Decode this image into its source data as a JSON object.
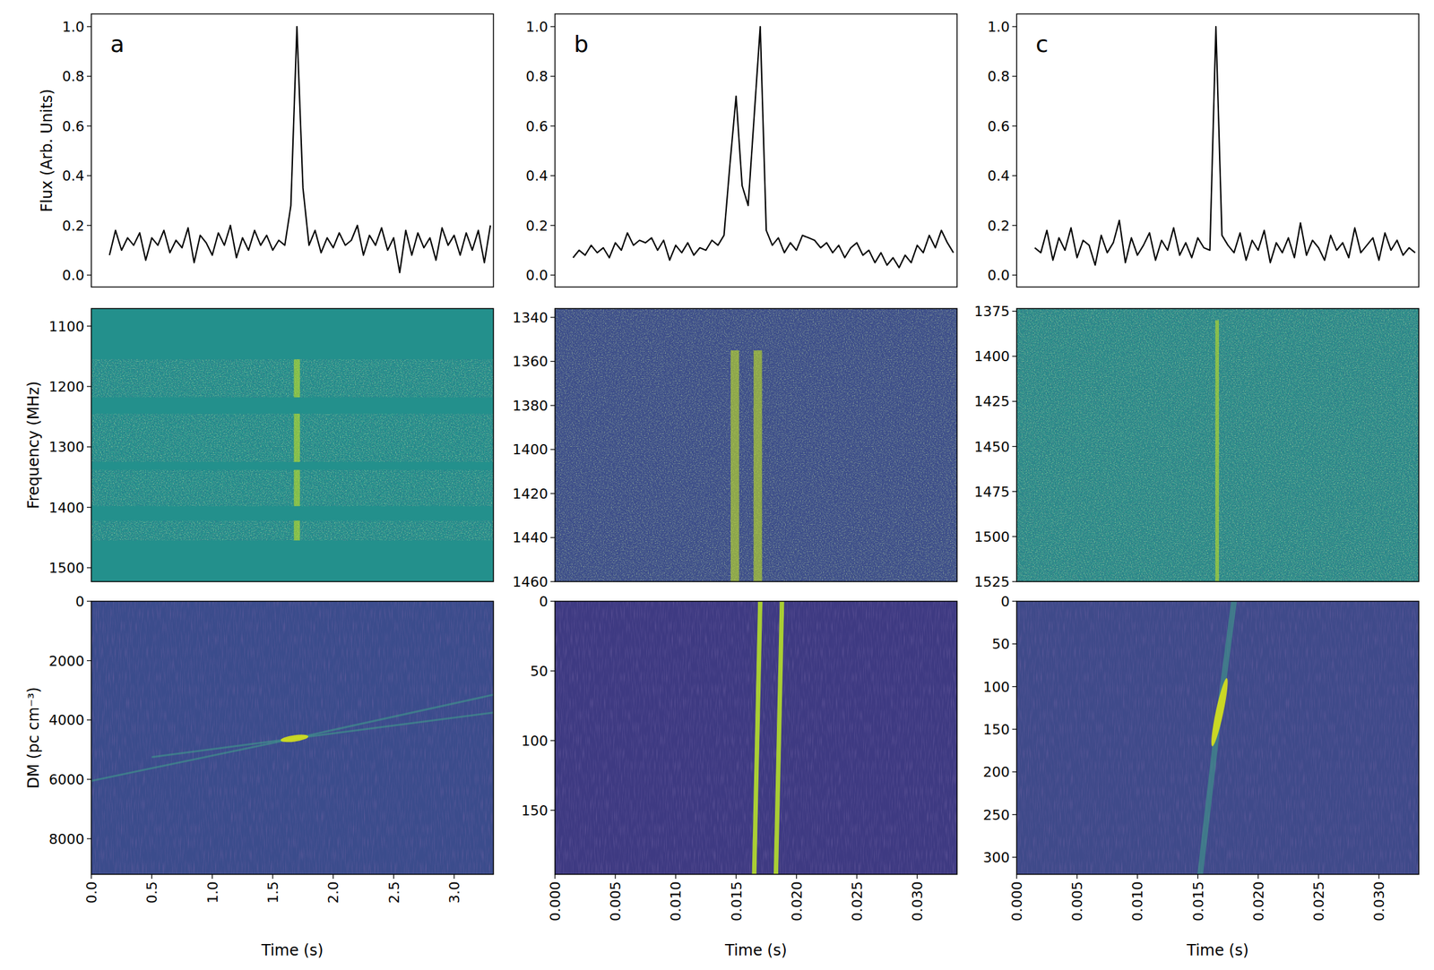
{
  "chart_data": [
    {
      "type": "line",
      "annotation": "a",
      "ylabel": "Flux (Arb. Units)",
      "color": "#000000",
      "tick_labels": "y",
      "xlim": [
        0,
        3.325
      ],
      "ylim": [
        -0.048,
        1.051
      ],
      "yticks": [
        {
          "value": 0,
          "label": "0.0"
        },
        {
          "value": 0.2,
          "label": "0.2"
        },
        {
          "value": 0.4,
          "label": "0.4"
        },
        {
          "value": 0.6,
          "label": "0.6"
        },
        {
          "value": 0.8,
          "label": "0.8"
        },
        {
          "value": 1,
          "label": "1.0"
        }
      ],
      "x": [
        0.15,
        0.2,
        0.25,
        0.3,
        0.35,
        0.4,
        0.45,
        0.5,
        0.55,
        0.6,
        0.65,
        0.7,
        0.75,
        0.8,
        0.85,
        0.9,
        0.95,
        1.0,
        1.05,
        1.1,
        1.15,
        1.2,
        1.25,
        1.3,
        1.35,
        1.4,
        1.45,
        1.5,
        1.55,
        1.6,
        1.65,
        1.7,
        1.75,
        1.8,
        1.85,
        1.9,
        1.95,
        2.0,
        2.05,
        2.1,
        2.15,
        2.2,
        2.25,
        2.3,
        2.35,
        2.4,
        2.45,
        2.5,
        2.55,
        2.6,
        2.65,
        2.7,
        2.75,
        2.8,
        2.85,
        2.9,
        2.95,
        3.0,
        3.05,
        3.1,
        3.15,
        3.2,
        3.25,
        3.3
      ],
      "values": [
        0.08,
        0.18,
        0.1,
        0.15,
        0.12,
        0.17,
        0.06,
        0.15,
        0.12,
        0.18,
        0.09,
        0.14,
        0.11,
        0.19,
        0.05,
        0.16,
        0.13,
        0.08,
        0.17,
        0.12,
        0.2,
        0.07,
        0.15,
        0.1,
        0.18,
        0.12,
        0.16,
        0.1,
        0.14,
        0.12,
        0.28,
        1.0,
        0.35,
        0.12,
        0.18,
        0.09,
        0.15,
        0.11,
        0.17,
        0.12,
        0.14,
        0.2,
        0.08,
        0.16,
        0.12,
        0.19,
        0.1,
        0.15,
        0.01,
        0.18,
        0.08,
        0.17,
        0.11,
        0.15,
        0.06,
        0.19,
        0.12,
        0.16,
        0.08,
        0.17,
        0.1,
        0.18,
        0.05,
        0.2
      ]
    },
    {
      "type": "line",
      "annotation": "b",
      "color": "#000000",
      "tick_labels": "y",
      "xlim": [
        0,
        0.0333
      ],
      "ylim": [
        -0.048,
        1.051
      ],
      "yticks": [
        {
          "value": 0,
          "label": "0.0"
        },
        {
          "value": 0.2,
          "label": "0.2"
        },
        {
          "value": 0.4,
          "label": "0.4"
        },
        {
          "value": 0.6,
          "label": "0.6"
        },
        {
          "value": 0.8,
          "label": "0.8"
        },
        {
          "value": 1,
          "label": "1.0"
        }
      ],
      "x": [
        0.0015,
        0.002,
        0.0025,
        0.003,
        0.0035,
        0.004,
        0.0045,
        0.005,
        0.0055,
        0.006,
        0.0065,
        0.007,
        0.0075,
        0.008,
        0.0085,
        0.009,
        0.0095,
        0.01,
        0.0105,
        0.011,
        0.0115,
        0.012,
        0.0125,
        0.013,
        0.0135,
        0.014,
        0.0145,
        0.015,
        0.0155,
        0.016,
        0.0165,
        0.017,
        0.0175,
        0.018,
        0.0185,
        0.019,
        0.0195,
        0.02,
        0.0205,
        0.021,
        0.0215,
        0.022,
        0.0225,
        0.023,
        0.0235,
        0.024,
        0.0245,
        0.025,
        0.0255,
        0.026,
        0.0265,
        0.027,
        0.0275,
        0.028,
        0.0285,
        0.029,
        0.0295,
        0.03,
        0.0305,
        0.031,
        0.0315,
        0.032,
        0.0325,
        0.033
      ],
      "values": [
        0.07,
        0.1,
        0.08,
        0.12,
        0.09,
        0.11,
        0.07,
        0.13,
        0.1,
        0.17,
        0.12,
        0.14,
        0.13,
        0.15,
        0.1,
        0.14,
        0.06,
        0.12,
        0.09,
        0.13,
        0.08,
        0.11,
        0.1,
        0.14,
        0.12,
        0.16,
        0.45,
        0.72,
        0.36,
        0.28,
        0.64,
        1.0,
        0.18,
        0.12,
        0.15,
        0.09,
        0.13,
        0.1,
        0.16,
        0.15,
        0.14,
        0.11,
        0.13,
        0.09,
        0.12,
        0.07,
        0.11,
        0.13,
        0.08,
        0.1,
        0.05,
        0.09,
        0.04,
        0.07,
        0.03,
        0.08,
        0.05,
        0.12,
        0.09,
        0.16,
        0.11,
        0.18,
        0.13,
        0.09
      ]
    },
    {
      "type": "line",
      "annotation": "c",
      "color": "#000000",
      "tick_labels": "y",
      "xlim": [
        0,
        0.0333
      ],
      "ylim": [
        -0.048,
        1.051
      ],
      "yticks": [
        {
          "value": 0,
          "label": "0.0"
        },
        {
          "value": 0.2,
          "label": "0.2"
        },
        {
          "value": 0.4,
          "label": "0.4"
        },
        {
          "value": 0.6,
          "label": "0.6"
        },
        {
          "value": 0.8,
          "label": "0.8"
        },
        {
          "value": 1,
          "label": "1.0"
        }
      ],
      "x": [
        0.0015,
        0.002,
        0.0025,
        0.003,
        0.0035,
        0.004,
        0.0045,
        0.005,
        0.0055,
        0.006,
        0.0065,
        0.007,
        0.0075,
        0.008,
        0.0085,
        0.009,
        0.0095,
        0.01,
        0.0105,
        0.011,
        0.0115,
        0.012,
        0.0125,
        0.013,
        0.0135,
        0.014,
        0.0145,
        0.015,
        0.0155,
        0.016,
        0.0165,
        0.017,
        0.0175,
        0.018,
        0.0185,
        0.019,
        0.0195,
        0.02,
        0.0205,
        0.021,
        0.0215,
        0.022,
        0.0225,
        0.023,
        0.0235,
        0.024,
        0.0245,
        0.025,
        0.0255,
        0.026,
        0.0265,
        0.027,
        0.0275,
        0.028,
        0.0285,
        0.029,
        0.0295,
        0.03,
        0.0305,
        0.031,
        0.0315,
        0.032,
        0.0325,
        0.033
      ],
      "values": [
        0.11,
        0.09,
        0.18,
        0.06,
        0.15,
        0.1,
        0.19,
        0.07,
        0.14,
        0.12,
        0.04,
        0.16,
        0.09,
        0.13,
        0.22,
        0.05,
        0.15,
        0.08,
        0.12,
        0.17,
        0.06,
        0.14,
        0.1,
        0.19,
        0.08,
        0.13,
        0.07,
        0.15,
        0.11,
        0.1,
        1.0,
        0.16,
        0.12,
        0.09,
        0.17,
        0.06,
        0.14,
        0.1,
        0.18,
        0.05,
        0.13,
        0.09,
        0.15,
        0.07,
        0.21,
        0.08,
        0.14,
        0.11,
        0.06,
        0.16,
        0.1,
        0.13,
        0.07,
        0.19,
        0.09,
        0.12,
        0.15,
        0.06,
        0.17,
        0.1,
        0.14,
        0.08,
        0.11,
        0.09
      ]
    },
    {
      "type": "dynamic_spectrum",
      "ylabel": "Frequency (MHz)",
      "color": "#23908c",
      "tick_labels": "y",
      "xlim": [
        0,
        3.325
      ],
      "ylim": [
        1523,
        1071
      ],
      "yticks": [
        1100,
        1200,
        1300,
        1400,
        1500
      ],
      "bursts": [
        {
          "time": 1.7,
          "width": 0.05,
          "freq_start": 1155,
          "freq_end": 1455
        }
      ],
      "masked_bands": [
        [
          1071,
          1155
        ],
        [
          1218,
          1245
        ],
        [
          1325,
          1338
        ],
        [
          1398,
          1422
        ],
        [
          1455,
          1523
        ]
      ]
    },
    {
      "type": "dynamic_spectrum",
      "color": "#3d4f8a",
      "tick_labels": "y",
      "xlim": [
        0,
        0.0333
      ],
      "ylim": [
        1460,
        1336
      ],
      "yticks": [
        1340,
        1360,
        1380,
        1400,
        1420,
        1440,
        1460
      ],
      "bursts": [
        {
          "time": 0.0149,
          "width": 0.0007,
          "freq_start": 1355,
          "freq_end": 1460
        },
        {
          "time": 0.0168,
          "width": 0.0007,
          "freq_start": 1355,
          "freq_end": 1460
        }
      ],
      "masked_bands": []
    },
    {
      "type": "dynamic_spectrum",
      "color": "#2a8d8a",
      "tick_labels": "y",
      "xlim": [
        0,
        0.0333
      ],
      "ylim": [
        1525,
        1373.5
      ],
      "yticks": [
        1375,
        1400,
        1425,
        1450,
        1475,
        1500,
        1525
      ],
      "bursts": [
        {
          "time": 0.0166,
          "width": 0.0003,
          "freq_start": 1380,
          "freq_end": 1525
        }
      ],
      "masked_bands": []
    },
    {
      "type": "dm_time",
      "xlabel": "Time (s)",
      "ylabel": "DM (pc cm⁻³)",
      "color": "#3b4c8c",
      "xlim": [
        0,
        3.325
      ],
      "ylim": [
        9200,
        0
      ],
      "yticks": [
        0,
        2000,
        4000,
        6000,
        8000
      ],
      "xticks": [
        {
          "value": 0,
          "label": "0.0"
        },
        {
          "value": 0.5,
          "label": "0.5"
        },
        {
          "value": 1,
          "label": "1.0"
        },
        {
          "value": 1.5,
          "label": "1.5"
        },
        {
          "value": 2,
          "label": "2.0"
        },
        {
          "value": 2.5,
          "label": "2.5"
        },
        {
          "value": 3,
          "label": "3.0"
        }
      ],
      "tracks": [
        {
          "x": [
            0,
            1.68,
            3.325
          ],
          "y": [
            6050,
            4620,
            3150
          ]
        },
        {
          "x": [
            0.5,
            1.68,
            3.325
          ],
          "y": [
            5250,
            4620,
            3750
          ]
        }
      ],
      "peak": {
        "time": 1.68,
        "dm": 4620
      }
    },
    {
      "type": "dm_time",
      "xlabel": "Time (s)",
      "color": "#3e3a82",
      "xlim": [
        0,
        0.0333
      ],
      "ylim": [
        196,
        0
      ],
      "yticks": [
        0,
        50,
        100,
        150
      ],
      "xticks": [
        {
          "value": 0,
          "label": "0.000"
        },
        {
          "value": 0.005,
          "label": "0.005"
        },
        {
          "value": 0.01,
          "label": "0.010"
        },
        {
          "value": 0.015,
          "label": "0.015"
        },
        {
          "value": 0.02,
          "label": "0.020"
        },
        {
          "value": 0.025,
          "label": "0.025"
        },
        {
          "value": 0.03,
          "label": "0.030"
        }
      ],
      "tracks": [
        {
          "x": [
            0.017,
            0.0165
          ],
          "y": [
            0,
            196
          ]
        },
        {
          "x": [
            0.0188,
            0.0183
          ],
          "y": [
            0,
            196
          ]
        }
      ]
    },
    {
      "type": "dm_time",
      "xlabel": "Time (s)",
      "color": "#3f4a8a",
      "xlim": [
        0,
        0.0333
      ],
      "ylim": [
        320,
        0
      ],
      "yticks": [
        0,
        50,
        100,
        150,
        200,
        250,
        300
      ],
      "xticks": [
        {
          "value": 0,
          "label": "0.000"
        },
        {
          "value": 0.005,
          "label": "0.005"
        },
        {
          "value": 0.01,
          "label": "0.010"
        },
        {
          "value": 0.015,
          "label": "0.015"
        },
        {
          "value": 0.02,
          "label": "0.020"
        },
        {
          "value": 0.025,
          "label": "0.025"
        },
        {
          "value": 0.03,
          "label": "0.030"
        }
      ],
      "tracks": [
        {
          "x": [
            0.018,
            0.0166,
            0.0152
          ],
          "y": [
            0,
            150,
            320
          ]
        }
      ],
      "peak": {
        "time": 0.0168,
        "dm": 130
      }
    }
  ]
}
